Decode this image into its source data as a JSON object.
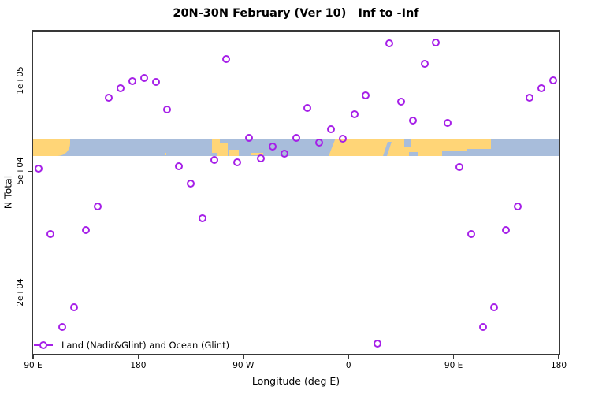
{
  "figure": {
    "title": "20N-30N February (Ver 10)   Inf to -Inf",
    "colors": {
      "marker": "#A620E8",
      "land": "#FFD577",
      "ocean": "#A8BDDB",
      "axis": "#383838"
    }
  },
  "legend": {
    "label": "Land (Nadir&Glint) and Ocean (Glint)",
    "marker_icon": "open-circle-with-line"
  },
  "chart_data": {
    "type": "scatter",
    "title": "20N-30N February (Ver 10)   Inf to -Inf",
    "xlabel": "Longitude (deg E)",
    "ylabel": "N Total",
    "x_axis": {
      "range": [
        90,
        540
      ],
      "ticks": [
        {
          "lon": 90,
          "label": "90 E"
        },
        {
          "lon": 180,
          "label": "180"
        },
        {
          "lon": 270,
          "label": "90 W"
        },
        {
          "lon": 360,
          "label": "0"
        },
        {
          "lon": 450,
          "label": "90 E"
        },
        {
          "lon": 540,
          "label": "180"
        }
      ]
    },
    "y_axis": {
      "scale": "log10",
      "ticks": [
        {
          "value": 100000,
          "label": "1e+05"
        },
        {
          "value": 50000,
          "label": "5e+04"
        },
        {
          "value": 20000,
          "label": "2e+04"
        }
      ]
    },
    "series": [
      {
        "name": "Land (Nadir&Glint) and Ocean (Glint)",
        "marker": "open-circle",
        "color": "#A620E8",
        "points": [
          [
            95,
            51000
          ],
          [
            105,
            31000
          ],
          [
            115,
            15300
          ],
          [
            125,
            17800
          ],
          [
            135,
            32000
          ],
          [
            145,
            38200
          ],
          [
            155,
            87500
          ],
          [
            165,
            94000
          ],
          [
            175,
            99000
          ],
          [
            185,
            101500
          ],
          [
            195,
            98500
          ],
          [
            205,
            80000
          ],
          [
            215,
            52000
          ],
          [
            225,
            45500
          ],
          [
            235,
            35000
          ],
          [
            245,
            54500
          ],
          [
            255,
            117000
          ],
          [
            265,
            53500
          ],
          [
            275,
            64500
          ],
          [
            285,
            55000
          ],
          [
            295,
            60500
          ],
          [
            305,
            57000
          ],
          [
            315,
            64500
          ],
          [
            325,
            81000
          ],
          [
            335,
            62000
          ],
          [
            345,
            69000
          ],
          [
            355,
            64000
          ],
          [
            365,
            77000
          ],
          [
            375,
            89000
          ],
          [
            385,
            13500
          ],
          [
            395,
            132000
          ],
          [
            405,
            85000
          ],
          [
            415,
            73500
          ],
          [
            425,
            113000
          ],
          [
            435,
            133000
          ],
          [
            445,
            72000
          ],
          [
            455,
            51500
          ],
          [
            465,
            31000
          ],
          [
            475,
            15300
          ],
          [
            485,
            17800
          ],
          [
            495,
            32000
          ],
          [
            505,
            38200
          ],
          [
            515,
            87500
          ],
          [
            525,
            94000
          ],
          [
            535,
            99500
          ]
        ]
      }
    ],
    "map_band": {
      "description": "world map strip of the 20N-30N latitude band drawn across the plot",
      "lon_range": [
        90,
        540
      ],
      "land_shapes": [
        {
          "name": "east-asia",
          "from": 90,
          "to": 121.5,
          "top": 0,
          "bottom": 1,
          "round_br": 16
        },
        {
          "name": "hawaii",
          "from": 202.5,
          "to": 203.7,
          "top": 0.8,
          "bottom": 0.95
        },
        {
          "name": "baja-mexico-upper",
          "from": 243,
          "to": 250,
          "top": 0,
          "bottom": 0.8
        },
        {
          "name": "baja-mexico-lower",
          "from": 248,
          "to": 256.5,
          "top": 0.2,
          "bottom": 1
        },
        {
          "name": "mexico-gulf-coast",
          "from": 258,
          "to": 266,
          "top": 0.6,
          "bottom": 1
        },
        {
          "name": "cuba",
          "from": 277,
          "to": 287,
          "top": 0.82,
          "bottom": 0.95
        },
        {
          "name": "africa-arabia-india",
          "from": 343,
          "to": 482,
          "top": 0,
          "bottom": 1,
          "slant_left": true
        }
      ],
      "ocean_notches": [
        {
          "name": "red-sea",
          "from": 391.5,
          "to": 395,
          "top": 0.15,
          "bottom": 1,
          "skew": true
        },
        {
          "name": "persian-gulf",
          "from": 408,
          "to": 413,
          "top": 0,
          "bottom": 0.45
        },
        {
          "name": "arabian-sea",
          "from": 412,
          "to": 419,
          "top": 0.75,
          "bottom": 1
        },
        {
          "name": "bay-of-bengal",
          "from": 440,
          "to": 462,
          "top": 0.72,
          "bottom": 1
        },
        {
          "name": "south-china-sea",
          "from": 462,
          "to": 482,
          "top": 0.55,
          "bottom": 1
        }
      ]
    }
  }
}
